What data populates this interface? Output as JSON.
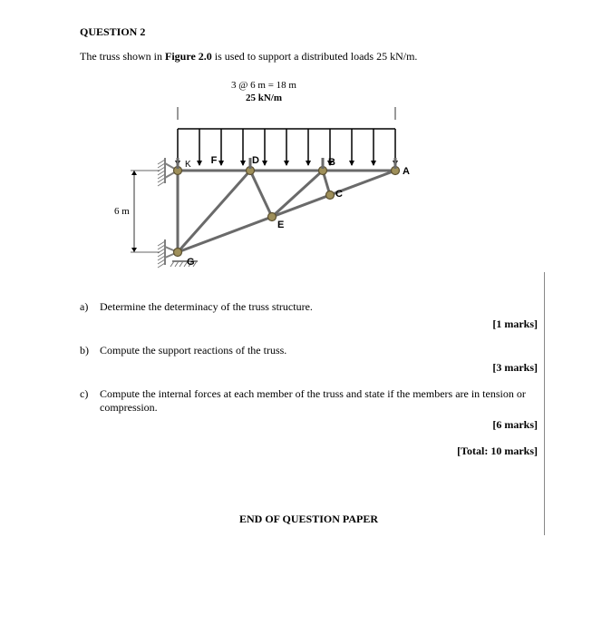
{
  "question_title": "QUESTION 2",
  "intro_prefix": "The truss shown in ",
  "intro_fig": "Figure 2.0",
  "intro_suffix": " is used to support a distributed loads 25 kN/m.",
  "figure": {
    "span_label": "3 @ 6 m = 18 m",
    "load_label": "25 kN/m",
    "height_label": "6 m",
    "nodes": {
      "A": "A",
      "B": "B",
      "C": "C",
      "D": "D",
      "E": "E",
      "F": "F",
      "G": "G",
      "K": "K"
    },
    "colors": {
      "member": "#6a6a6a",
      "node_fill": "#9e8f5a",
      "node_stroke": "#5b5030",
      "support": "#808080",
      "support_hatch": "#777",
      "dim_line": "#333"
    },
    "member_width": 3,
    "node_radius": 4.5,
    "arrow_count": 11
  },
  "parts": {
    "a": {
      "label": "a)",
      "text": "Determine the determinacy of the truss structure.",
      "marks": "[1 marks]"
    },
    "b": {
      "label": "b)",
      "text": "Compute the support reactions of the truss.",
      "marks": "[3 marks]"
    },
    "c": {
      "label": "c)",
      "text": "Compute the internal forces at each member of the truss and state if the members are in tension or compression.",
      "marks": "[6 marks]"
    }
  },
  "total": "[Total: 10 marks]",
  "end": "END OF QUESTION PAPER"
}
